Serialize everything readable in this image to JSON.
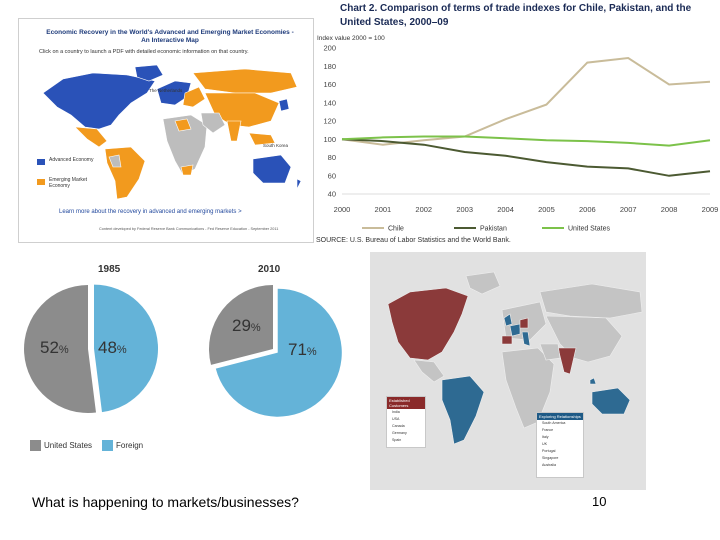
{
  "map1": {
    "title": "Economic Recovery in the World's Advanced and Emerging Market Economies - An Interactive Map",
    "subtitle": "Click on a country to launch a PDF with detailed economic information on that country.",
    "label_netherlands": "The Netherlands",
    "label_south_korea": "South Korea",
    "legend": [
      {
        "label": "Advanced Economy",
        "color": "#2a52b8"
      },
      {
        "label": "Emerging Market Economy",
        "color": "#f29a1e"
      }
    ],
    "link": "Learn more about the recovery in advanced and emerging markets >",
    "credit": "Content developed by Federal Reserve Bank Communications - Fed Reserve Education - September 2011",
    "colors": {
      "advanced": "#2a52b8",
      "emerging": "#f29a1e",
      "other": "#bdbdbd"
    }
  },
  "chart_data": [
    {
      "type": "line",
      "title": "Chart 2. Comparison of terms of trade indexes for Chile, Pakistan, and the United States, 2000–09",
      "ylabel": "Index value 2000 = 100",
      "x": [
        "2000",
        "2001",
        "2002",
        "2003",
        "2004",
        "2005",
        "2006",
        "2007",
        "2008",
        "2009"
      ],
      "ylim": [
        40,
        200
      ],
      "yticks": [
        40,
        60,
        80,
        100,
        120,
        140,
        160,
        180,
        200
      ],
      "series": [
        {
          "name": "Chile",
          "color": "#c9bc9a",
          "values": [
            100,
            94,
            99,
            103,
            122,
            138,
            184,
            189,
            160,
            163
          ]
        },
        {
          "name": "Pakistan",
          "color": "#4c5a32",
          "values": [
            100,
            98,
            94,
            86,
            82,
            75,
            70,
            68,
            60,
            65
          ]
        },
        {
          "name": "United States",
          "color": "#7cc24a",
          "values": [
            100,
            102,
            103,
            103,
            101,
            99,
            98,
            96,
            93,
            99
          ]
        }
      ],
      "source": "SOURCE: U.S. Bureau of Labor Statistics and the World Bank."
    },
    {
      "type": "pie",
      "title": "1985",
      "slices": [
        {
          "label": "United States",
          "value": 52,
          "color": "#8c8c8c"
        },
        {
          "label": "Foreign",
          "value": 48,
          "color": "#64b3d8"
        }
      ]
    },
    {
      "type": "pie",
      "title": "2010",
      "slices": [
        {
          "label": "United States",
          "value": 29,
          "color": "#8c8c8c"
        },
        {
          "label": "Foreign",
          "value": 71,
          "color": "#64b3d8"
        }
      ]
    }
  ],
  "pies": {
    "y1985": "1985",
    "y2010": "2010",
    "p52": "52",
    "p48": "48",
    "p29": "29",
    "p71": "71",
    "pct": "%",
    "legend_us": "United States",
    "legend_foreign": "Foreign"
  },
  "map2": {
    "established_title": "Established Customers",
    "established": [
      "India",
      "USA",
      "Canada",
      "Germany",
      "Spain"
    ],
    "exploring_title": "Exploring Relationships",
    "exploring": [
      "South America",
      "France",
      "Italy",
      "UK",
      "Portugal",
      "Singapore",
      "Australia"
    ],
    "colors": {
      "established": "#8b3a3a",
      "exploring": "#2e6a92",
      "other": "#c4c4c4"
    }
  },
  "footer": {
    "question": "What is happening to markets/businesses?",
    "page_number": "10"
  }
}
